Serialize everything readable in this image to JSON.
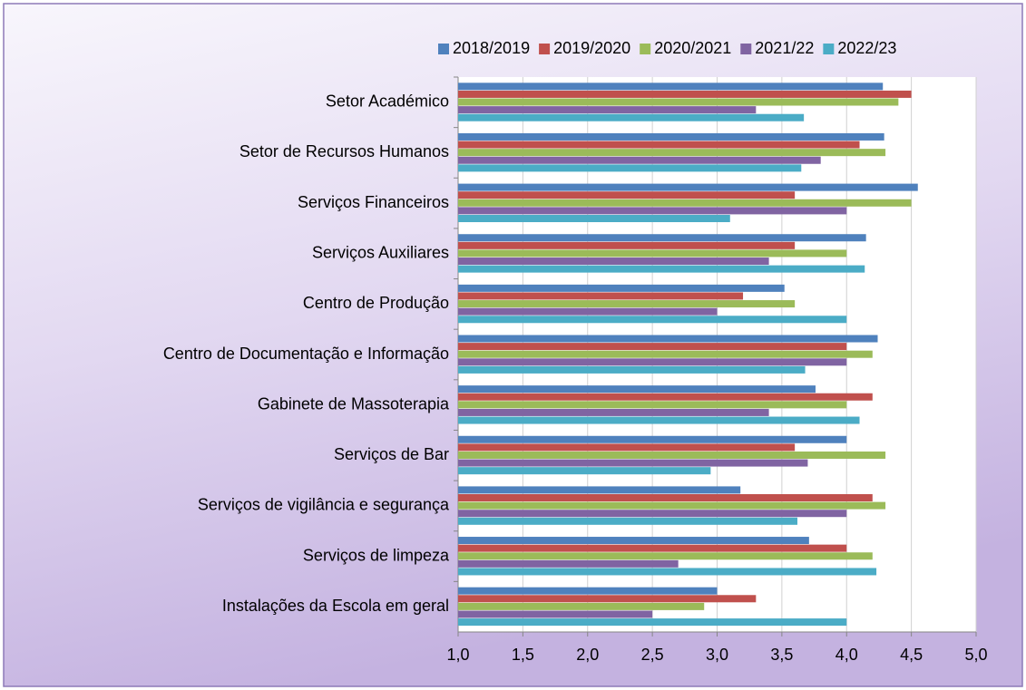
{
  "chart_data": {
    "type": "hbar",
    "categories": [
      "Setor Académico",
      "Setor de Recursos Humanos",
      "Serviços Financeiros",
      "Serviços Auxiliares",
      "Centro de Produção",
      "Centro de Documentação e Informação",
      "Gabinete de Massoterapia",
      "Serviços de Bar",
      "Serviços de vigilância e segurança",
      "Serviços de limpeza",
      "Instalações da Escola em geral"
    ],
    "series": [
      {
        "name": "2018/2019",
        "color": "#4f81bd",
        "values": [
          4.28,
          4.29,
          4.55,
          4.15,
          3.52,
          4.24,
          3.76,
          4.0,
          3.18,
          3.71,
          3.0
        ]
      },
      {
        "name": "2019/2020",
        "color": "#c0504d",
        "values": [
          4.5,
          4.1,
          3.6,
          3.6,
          3.2,
          4.0,
          4.2,
          3.6,
          4.2,
          4.0,
          3.3
        ]
      },
      {
        "name": "2020/2021",
        "color": "#9bbb59",
        "values": [
          4.4,
          4.3,
          4.5,
          4.0,
          3.6,
          4.2,
          4.0,
          4.3,
          4.3,
          4.2,
          2.9
        ]
      },
      {
        "name": "2021/22",
        "color": "#8064a2",
        "values": [
          3.3,
          3.8,
          4.0,
          3.4,
          3.0,
          4.0,
          3.4,
          3.7,
          4.0,
          2.7,
          2.5
        ]
      },
      {
        "name": "2022/23",
        "color": "#4bacc6",
        "values": [
          3.67,
          3.65,
          3.1,
          4.14,
          4.0,
          3.68,
          4.1,
          2.95,
          3.62,
          4.23,
          4.0
        ]
      }
    ],
    "xlim": [
      1.0,
      5.0
    ],
    "xticks": [
      {
        "value": 1.0,
        "label": "1,0"
      },
      {
        "value": 1.5,
        "label": "1,5"
      },
      {
        "value": 2.0,
        "label": "2,0"
      },
      {
        "value": 2.5,
        "label": "2,5"
      },
      {
        "value": 3.0,
        "label": "3,0"
      },
      {
        "value": 3.5,
        "label": "3,5"
      },
      {
        "value": 4.0,
        "label": "4,0"
      },
      {
        "value": 4.5,
        "label": "4,5"
      },
      {
        "value": 5.0,
        "label": "5,0"
      }
    ],
    "grid": true,
    "legend": "top"
  }
}
